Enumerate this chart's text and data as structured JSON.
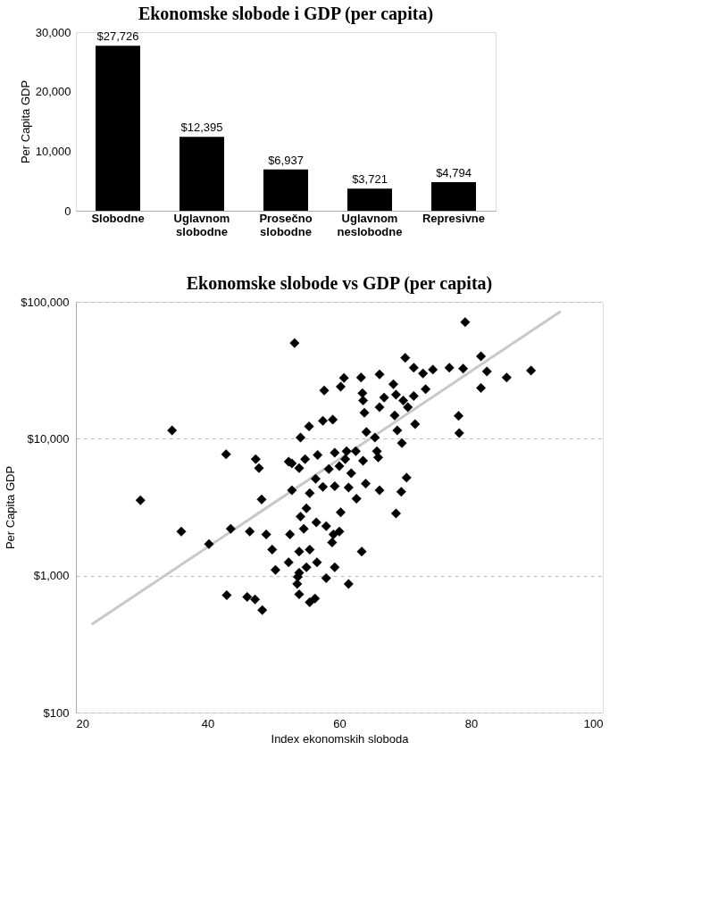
{
  "chart_data": [
    {
      "type": "bar",
      "title": "Ekonomske slobode i GDP (per capita)",
      "ylabel": "Per Capita GDP",
      "categories": [
        "Slobodne",
        "Uglavnom slobodne",
        "Prosečno slobodne",
        "Uglavnom neslobodne",
        "Represivne"
      ],
      "values": [
        27726,
        12395,
        6937,
        3721,
        4794
      ],
      "color": "#000000",
      "value_labels": [
        "$27,726",
        "$12,395",
        "$6,937",
        "$3,721",
        "$4,794"
      ],
      "ylim": [
        0,
        30000
      ],
      "yticks": [
        0,
        {
          "value": 10000,
          "label": "10,000"
        },
        {
          "value": 20000,
          "label": "20,000"
        },
        {
          "value": 30000,
          "label": "30,000"
        }
      ],
      "grid": false
    },
    {
      "type": "scatter",
      "title": "Ekonomske slobode vs GDP (per capita)",
      "xlabel": "Index ekonomskih sloboda",
      "ylabel": "Per Capita GDP",
      "log": "y",
      "xlim": [
        20,
        100
      ],
      "xticks": [
        20,
        40,
        60,
        80,
        100
      ],
      "ylim": [
        100,
        100000
      ],
      "yticks": [
        {
          "value": 100,
          "label": "$100"
        },
        {
          "value": 1000,
          "label": "$1,000"
        },
        {
          "value": 10000,
          "label": "$10,000"
        },
        {
          "value": 100000,
          "label": "$100,000"
        }
      ],
      "grid": "y",
      "series": [
        {
          "type": "scatter",
          "color": "#000000",
          "marker": "diamond",
          "x": [
            53.2,
            34.6,
            29.8,
            42.8,
            47.3,
            47.8,
            36.0,
            40.2,
            43.5,
            48.2,
            46.4,
            48.9,
            49.8,
            50.3,
            54.1,
            52.8,
            53.9,
            54.8,
            56.7,
            57.7,
            55.4,
            57.5,
            59.0,
            52.8,
            55.5,
            57.5,
            55.0,
            54.1,
            56.5,
            58.0,
            52.5,
            54.6,
            53.9,
            55.5,
            52.3,
            55.0,
            56.6,
            58.0,
            53.7,
            59.1,
            59.3,
            79.1,
            70.0,
            71.3,
            72.7,
            74.2,
            76.7,
            78.8,
            81.5,
            82.4,
            81.5,
            85.4,
            89.1,
            78.1,
            78.2,
            60.7,
            60.2,
            63.3,
            66.1,
            63.5,
            63.6,
            68.2,
            66.8,
            68.6,
            69.7,
            71.3,
            73.1,
            70.4,
            66.1,
            63.8,
            68.4,
            71.5,
            64.1,
            65.4,
            68.8,
            69.5,
            52.3,
            59.3,
            61.1,
            62.5,
            60.9,
            63.6,
            65.7,
            65.9,
            58.4,
            60.0,
            61.8,
            56.4,
            59.3,
            61.4,
            64.0,
            66.1,
            70.2,
            69.4,
            62.6,
            60.2,
            68.6,
            60.0,
            58.9,
            63.4,
            61.4,
            53.9,
            53.6,
            42.9,
            46.0,
            47.2,
            48.3,
            53.9,
            55.5,
            56.3
          ],
          "values": [
            50000,
            11500,
            3550,
            7700,
            7100,
            6100,
            2100,
            1700,
            2200,
            3600,
            2100,
            2000,
            1550,
            1100,
            10200,
            6600,
            6100,
            7100,
            7600,
            22500,
            12300,
            13500,
            13800,
            4200,
            4000,
            4450,
            3100,
            2700,
            2450,
            2300,
            2000,
            2200,
            1500,
            1550,
            1250,
            1150,
            1250,
            960,
            980,
            2000,
            1150,
            71000,
            39000,
            33000,
            30000,
            32000,
            33000,
            32500,
            40000,
            31000,
            23500,
            28000,
            31500,
            14700,
            11000,
            27800,
            24000,
            28000,
            29500,
            21500,
            19000,
            25000,
            20000,
            21000,
            19000,
            20500,
            23000,
            17000,
            17000,
            15500,
            14800,
            12800,
            11200,
            10200,
            11500,
            9300,
            6800,
            7900,
            8100,
            8100,
            7100,
            6900,
            8100,
            7300,
            6000,
            6300,
            5600,
            5100,
            4500,
            4400,
            4700,
            4200,
            5200,
            4100,
            3650,
            2900,
            2850,
            2100,
            1750,
            1500,
            870,
            1050,
            870,
            720,
            700,
            670,
            560,
            730,
            640,
            680
          ]
        },
        {
          "type": "line",
          "color": "#c8c8c8",
          "x": [
            22.4,
            93.6
          ],
          "values": [
            440,
            85000
          ],
          "line_style": "solid",
          "marker": "none"
        }
      ]
    }
  ]
}
